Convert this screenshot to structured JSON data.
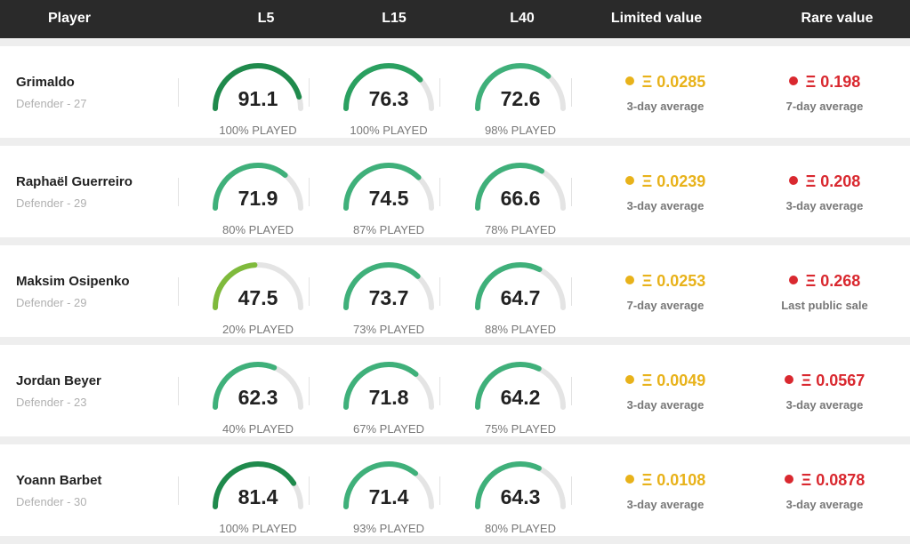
{
  "header": {
    "player": "Player",
    "l5": "L5",
    "l15": "L15",
    "l40": "L40",
    "limited": "Limited value",
    "rare": "Rare value"
  },
  "colors": {
    "limited": "#e8b21a",
    "rare": "#d9282f",
    "gauge_track": "#e4e4e4"
  },
  "currency_symbol": "Ξ",
  "players": [
    {
      "name": "Grimaldo",
      "meta": "Defender - 27",
      "gauges": [
        {
          "score": "91.1",
          "played": "100% PLAYED",
          "color": "#1f8a4c"
        },
        {
          "score": "76.3",
          "played": "100% PLAYED",
          "color": "#2aa060"
        },
        {
          "score": "72.6",
          "played": "98% PLAYED",
          "color": "#3fb07a"
        }
      ],
      "limited": {
        "amount": "Ξ 0.0285",
        "sub": "3-day average"
      },
      "rare": {
        "amount": "Ξ 0.198",
        "sub": "7-day average"
      }
    },
    {
      "name": "Raphaël Guerreiro",
      "meta": "Defender - 29",
      "gauges": [
        {
          "score": "71.9",
          "played": "80% PLAYED",
          "color": "#3fb07a"
        },
        {
          "score": "74.5",
          "played": "87% PLAYED",
          "color": "#3fb07a"
        },
        {
          "score": "66.6",
          "played": "78% PLAYED",
          "color": "#3fb07a"
        }
      ],
      "limited": {
        "amount": "Ξ 0.0239",
        "sub": "3-day average"
      },
      "rare": {
        "amount": "Ξ 0.208",
        "sub": "3-day average"
      }
    },
    {
      "name": "Maksim Osipenko",
      "meta": "Defender - 29",
      "gauges": [
        {
          "score": "47.5",
          "played": "20% PLAYED",
          "color": "#7fba3c"
        },
        {
          "score": "73.7",
          "played": "73% PLAYED",
          "color": "#3fb07a"
        },
        {
          "score": "64.7",
          "played": "88% PLAYED",
          "color": "#3fb07a"
        }
      ],
      "limited": {
        "amount": "Ξ 0.0253",
        "sub": "7-day average"
      },
      "rare": {
        "amount": "Ξ 0.268",
        "sub": "Last public sale"
      }
    },
    {
      "name": "Jordan Beyer",
      "meta": "Defender - 23",
      "gauges": [
        {
          "score": "62.3",
          "played": "40% PLAYED",
          "color": "#3fb07a"
        },
        {
          "score": "71.8",
          "played": "67% PLAYED",
          "color": "#3fb07a"
        },
        {
          "score": "64.2",
          "played": "75% PLAYED",
          "color": "#3fb07a"
        }
      ],
      "limited": {
        "amount": "Ξ 0.0049",
        "sub": "3-day average"
      },
      "rare": {
        "amount": "Ξ 0.0567",
        "sub": "3-day average"
      }
    },
    {
      "name": "Yoann Barbet",
      "meta": "Defender - 30",
      "gauges": [
        {
          "score": "81.4",
          "played": "100% PLAYED",
          "color": "#1f8a4c"
        },
        {
          "score": "71.4",
          "played": "93% PLAYED",
          "color": "#3fb07a"
        },
        {
          "score": "64.3",
          "played": "80% PLAYED",
          "color": "#3fb07a"
        }
      ],
      "limited": {
        "amount": "Ξ 0.0108",
        "sub": "3-day average"
      },
      "rare": {
        "amount": "Ξ 0.0878",
        "sub": "3-day average"
      }
    }
  ]
}
